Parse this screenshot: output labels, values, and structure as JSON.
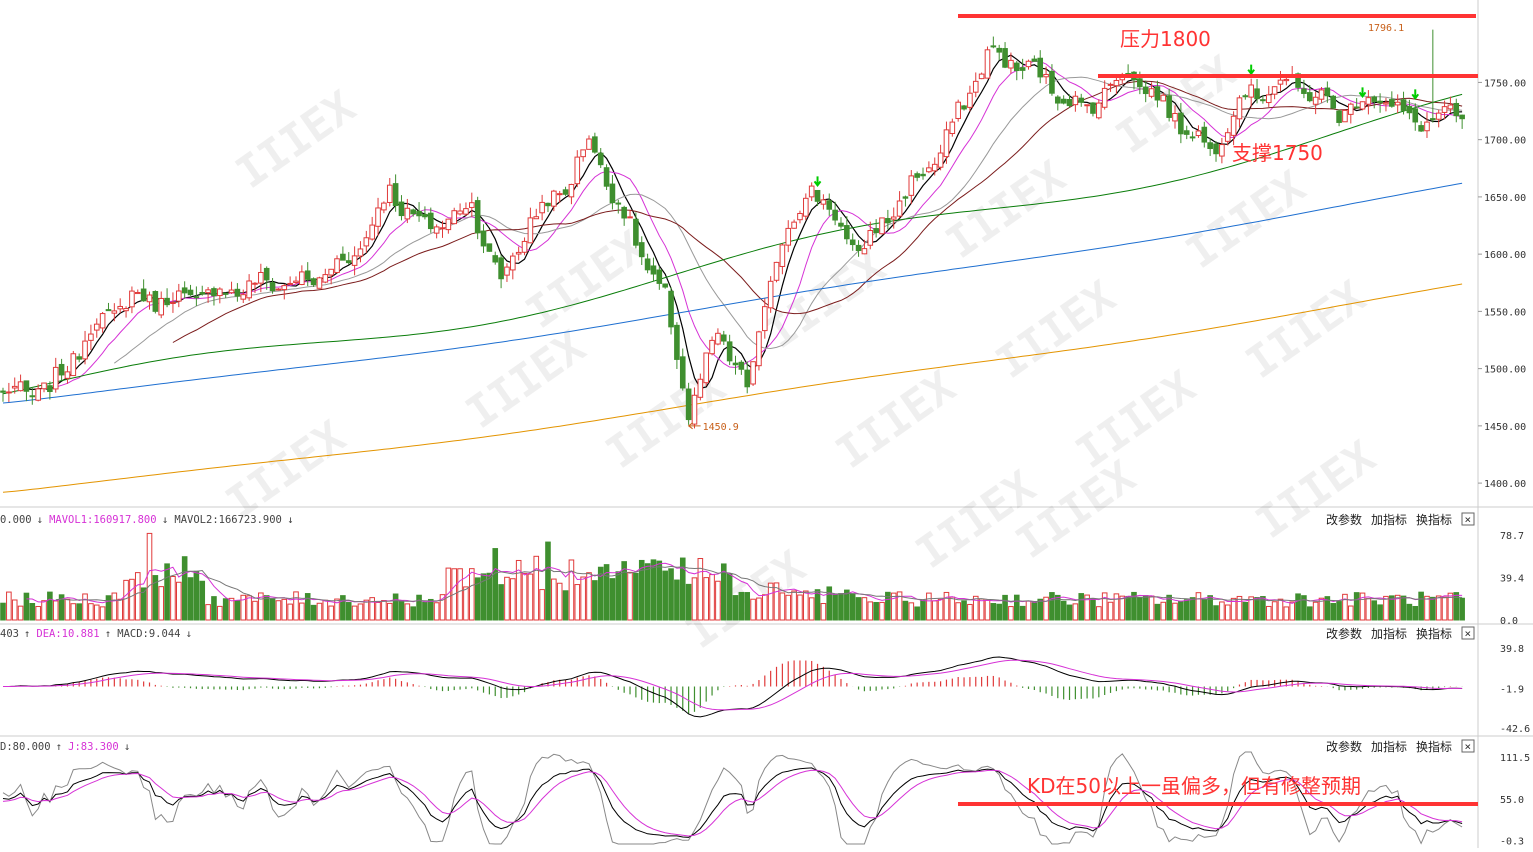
{
  "chart_data": [
    {
      "name": "price",
      "type": "candlestick",
      "ylim": [
        1380,
        1815
      ],
      "y_ticks": [
        "1750.00",
        "1700.00",
        "1650.00",
        "1600.00",
        "1550.00",
        "1500.00",
        "1450.00",
        "1400.00"
      ],
      "price_points": {
        "x_index": [
          0,
          8,
          16,
          22,
          30,
          38,
          45,
          52,
          60,
          66,
          72,
          80,
          85,
          90,
          96,
          100,
          108,
          113,
          117,
          122,
          125,
          127,
          132,
          138,
          146,
          152,
          160,
          168,
          176,
          184,
          192,
          200,
          206,
          212,
          220,
          228,
          235,
          240,
          245
        ],
        "close": [
          1478,
          1482,
          1540,
          1562,
          1560,
          1568,
          1575,
          1575,
          1600,
          1655,
          1622,
          1642,
          1575,
          1630,
          1658,
          1700,
          1610,
          1560,
          1462,
          1530,
          1505,
          1480,
          1600,
          1660,
          1600,
          1640,
          1690,
          1775,
          1760,
          1725,
          1760,
          1720,
          1690,
          1740,
          1750,
          1725,
          1740,
          1715,
          1720
        ]
      },
      "ma_params": [
        5,
        10,
        20,
        30,
        60,
        120,
        250
      ],
      "ma_colors": [
        "#000000",
        "#d632d6",
        "#999999",
        "#7b1c1c",
        "#0a7d0a",
        "#1e6fd0",
        "#e39400"
      ],
      "annotations": {
        "resistance_label": "压力1800",
        "support_label": "支撑1750",
        "low_label": "1450.9",
        "high_label": "1796.1",
        "kd_note": "KD在50以上一虽偏多，但有修整预期"
      },
      "resistance_level": 1795,
      "support_level": 1748,
      "low_marker": {
        "index": 117,
        "value": 1450.9
      },
      "high_marker": {
        "index": 244,
        "value": 1796.1
      }
    },
    {
      "name": "volume",
      "type": "bar",
      "header": [
        "0.000",
        "↓",
        "MAVOL1:160917.800",
        "↓",
        "MAVOL2:166723.900",
        "↓"
      ],
      "y_ticks": [
        "78.7",
        "39.4",
        "0.0"
      ],
      "ylim": [
        0,
        85
      ]
    },
    {
      "name": "macd",
      "type": "line",
      "header": [
        "403",
        "↑",
        "DEA:10.881",
        "↑",
        "MACD:9.044",
        "↓"
      ],
      "y_ticks": [
        "39.8",
        "-1.9",
        "-42.6"
      ],
      "ylim": [
        -48,
        48
      ]
    },
    {
      "name": "kdj",
      "type": "line",
      "header": [
        "D:80.000",
        "↑",
        "J:83.300",
        "↓"
      ],
      "y_ticks": [
        "111.5",
        "55.0",
        "-0.3"
      ],
      "ylim": [
        -5,
        118
      ],
      "kd_line_level": 55
    }
  ],
  "panel_buttons": {
    "modify": "改参数",
    "add": "加指标",
    "switch": "换指标",
    "close": "×"
  },
  "colors": {
    "up": "#e03a3a",
    "down": "#3f8f2f",
    "annotation_red": "#ff3333",
    "up_arrow": "#00cc00",
    "low_label_color": "#c8601a",
    "header_pink": "#d632d6",
    "header_dark": "#444444"
  },
  "watermark_text": "IIIEX"
}
